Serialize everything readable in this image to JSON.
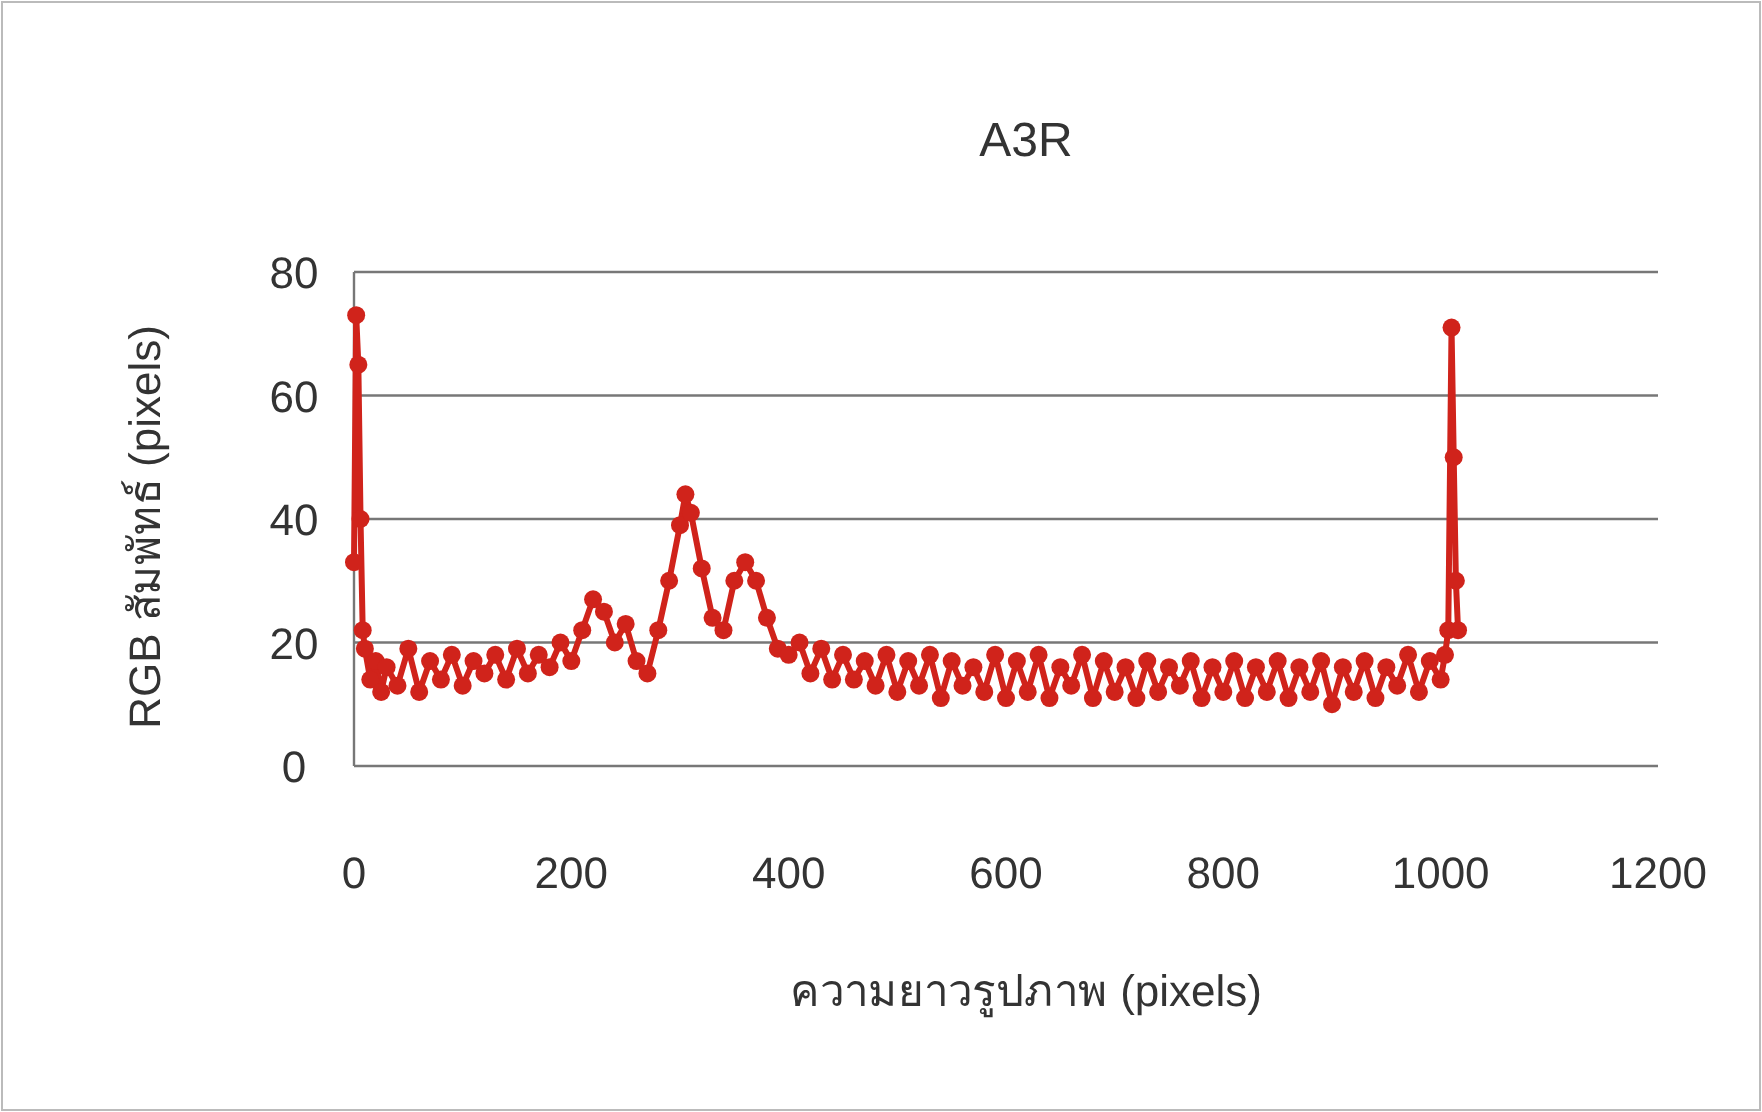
{
  "chart_data": {
    "type": "line",
    "title": "A3R",
    "xlabel": "ความยาวรูปภาพ (pixels)",
    "ylabel": "RGB สัมพัทธ์ (pixels)",
    "xlim": [
      0,
      1200
    ],
    "xticks": [
      0,
      200,
      400,
      600,
      800,
      1000,
      1200
    ],
    "ylim": [
      0,
      80
    ],
    "yticks": [
      0,
      20,
      40,
      60,
      80
    ],
    "grid": "y",
    "marker": "circle",
    "line_style": "solid",
    "series": [
      {
        "color": "#d0231b",
        "x": [
          0,
          2,
          4,
          6,
          8,
          10,
          15,
          20,
          25,
          30,
          40,
          50,
          60,
          70,
          80,
          90,
          100,
          110,
          120,
          130,
          140,
          150,
          160,
          170,
          180,
          190,
          200,
          210,
          220,
          230,
          240,
          250,
          260,
          270,
          280,
          290,
          300,
          305,
          310,
          320,
          330,
          340,
          350,
          360,
          370,
          380,
          390,
          400,
          410,
          420,
          430,
          440,
          450,
          460,
          470,
          480,
          490,
          500,
          510,
          520,
          530,
          540,
          550,
          560,
          570,
          580,
          590,
          600,
          610,
          620,
          630,
          640,
          650,
          660,
          670,
          680,
          690,
          700,
          710,
          720,
          730,
          740,
          750,
          760,
          770,
          780,
          790,
          800,
          810,
          820,
          830,
          840,
          850,
          860,
          870,
          880,
          890,
          900,
          910,
          920,
          930,
          940,
          950,
          960,
          970,
          980,
          990,
          1000,
          1004,
          1007,
          1010,
          1012,
          1014,
          1016
        ],
        "values": [
          33,
          73,
          65,
          40,
          22,
          19,
          14,
          17,
          12,
          16,
          13,
          19,
          12,
          17,
          14,
          18,
          13,
          17,
          15,
          18,
          14,
          19,
          15,
          18,
          16,
          20,
          17,
          22,
          27,
          25,
          20,
          23,
          17,
          15,
          22,
          30,
          39,
          44,
          41,
          32,
          24,
          22,
          30,
          33,
          30,
          24,
          19,
          18,
          20,
          15,
          19,
          14,
          18,
          14,
          17,
          13,
          18,
          12,
          17,
          13,
          18,
          11,
          17,
          13,
          16,
          12,
          18,
          11,
          17,
          12,
          18,
          11,
          16,
          13,
          18,
          11,
          17,
          12,
          16,
          11,
          17,
          12,
          16,
          13,
          17,
          11,
          16,
          12,
          17,
          11,
          16,
          12,
          17,
          11,
          16,
          12,
          17,
          10,
          16,
          12,
          17,
          11,
          16,
          13,
          18,
          12,
          17,
          14,
          18,
          22,
          71,
          50,
          30,
          22
        ]
      }
    ]
  }
}
